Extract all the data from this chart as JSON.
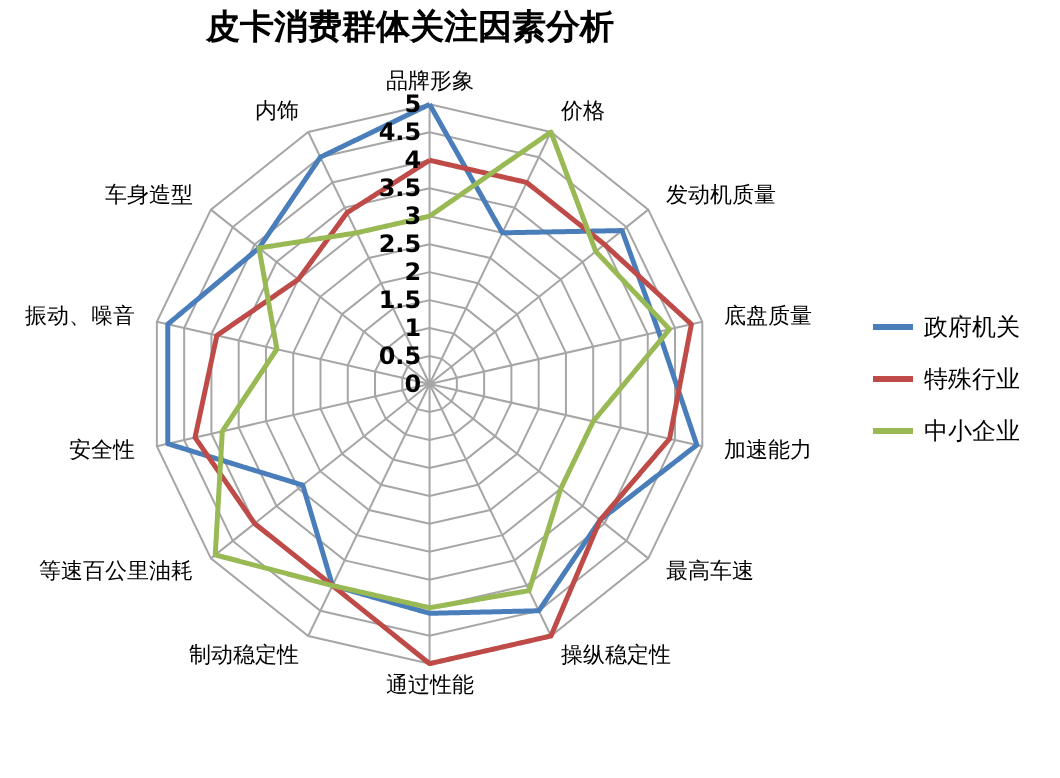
{
  "chart_data": {
    "type": "radar",
    "title": "皮卡消费群体关注因素分析",
    "categories": [
      "品牌形象",
      "价格",
      "发动机质量",
      "底盘质量",
      "加速能力",
      "最高车速",
      "操纵稳定性",
      "通过性能",
      "制动稳定性",
      "等速百公里油耗",
      "安全性",
      "振动、噪音",
      "车身造型",
      "内饰"
    ],
    "series": [
      {
        "name": "政府机关",
        "color": "#4a7ebb",
        "values": [
          5,
          3,
          4.4,
          4.2,
          4.9,
          3.9,
          4.5,
          4.1,
          4,
          2.9,
          4.8,
          4.8,
          3.9,
          4.5
        ]
      },
      {
        "name": "特殊行业",
        "color": "#be4b48",
        "values": [
          4,
          4,
          4,
          4.8,
          4.4,
          3.9,
          5,
          5,
          4,
          4,
          4.3,
          3.9,
          3,
          3.4
        ]
      },
      {
        "name": "中小企业",
        "color": "#98b954",
        "values": [
          3,
          5,
          3.8,
          4.4,
          3,
          3,
          4.1,
          4,
          4,
          4.9,
          3.8,
          2.8,
          3.9,
          3
        ]
      }
    ],
    "ylim": [
      0,
      5
    ],
    "yticks": [
      0,
      0.5,
      1,
      1.5,
      2,
      2.5,
      3,
      3.5,
      4,
      4.5,
      5
    ],
    "grid": true,
    "legend": "right",
    "line_style": "solid"
  }
}
